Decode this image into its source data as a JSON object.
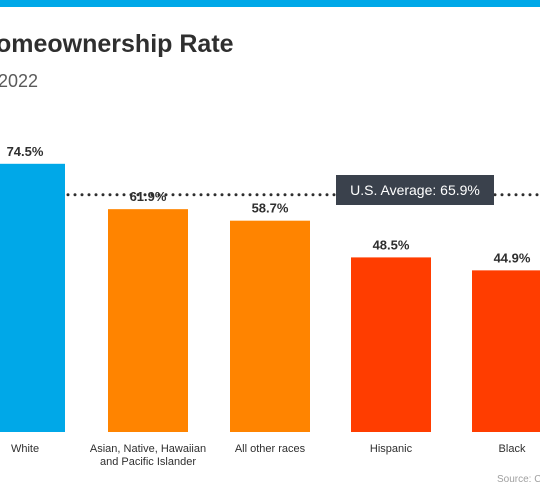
{
  "header": {
    "title": "omeownership Rate",
    "subtitle": "2022"
  },
  "footer": {
    "source": "Source: C"
  },
  "chart_data": {
    "type": "bar",
    "title": "omeownership Rate",
    "subtitle": "2022",
    "categories": [
      "White",
      "Asian, Native, Hawaiian and Pacific Islander",
      "All other races",
      "Hispanic",
      "Black"
    ],
    "values": [
      74.5,
      61.9,
      58.7,
      48.5,
      44.9
    ],
    "value_labels": [
      "74.5%",
      "61.9%",
      "58.7%",
      "48.5%",
      "44.9%"
    ],
    "bar_colors": [
      "#00a8e8",
      "#ff8400",
      "#ff8400",
      "#ff3d00",
      "#ff3d00"
    ],
    "reference_line": {
      "label": "U.S. Average: 65.9%",
      "value": 65.9,
      "style": "dotted"
    },
    "ylim": [
      0,
      100
    ],
    "grid": false,
    "legend": "none"
  }
}
